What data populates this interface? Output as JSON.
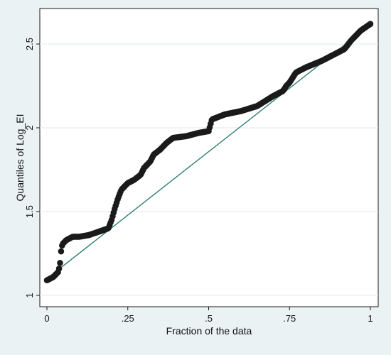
{
  "chart_data": {
    "type": "scatter",
    "title": "",
    "xlabel": "Fraction of the data",
    "ylabel": "Quantiles of Log_EI",
    "xlim": [
      0,
      1
    ],
    "ylim": [
      1,
      2.625
    ],
    "x_ticks": [
      0,
      0.25,
      0.5,
      0.75,
      1
    ],
    "x_tick_labels": [
      "0",
      ".25",
      ".5",
      ".75",
      "1"
    ],
    "y_ticks": [
      1,
      1.5,
      2,
      2.5
    ],
    "y_tick_labels": [
      "1",
      "1.5",
      "2",
      "2.5"
    ],
    "grid": true,
    "legend": false,
    "series": [
      {
        "label": "",
        "kind": "points",
        "color": "#1a1a1a",
        "x": [
          0.0,
          0.02,
          0.035,
          0.04,
          0.045,
          0.05,
          0.06,
          0.08,
          0.1,
          0.13,
          0.16,
          0.19,
          0.2,
          0.21,
          0.22,
          0.23,
          0.25,
          0.27,
          0.29,
          0.3,
          0.32,
          0.33,
          0.35,
          0.37,
          0.39,
          0.43,
          0.47,
          0.5,
          0.51,
          0.55,
          0.6,
          0.65,
          0.7,
          0.73,
          0.74,
          0.75,
          0.77,
          0.8,
          0.85,
          0.88,
          0.9,
          0.92,
          0.94,
          0.97,
          1.0
        ],
        "y": [
          1.09,
          1.11,
          1.14,
          1.18,
          1.29,
          1.31,
          1.33,
          1.35,
          1.35,
          1.36,
          1.38,
          1.4,
          1.45,
          1.52,
          1.58,
          1.63,
          1.67,
          1.69,
          1.72,
          1.76,
          1.8,
          1.84,
          1.87,
          1.91,
          1.94,
          1.95,
          1.97,
          1.98,
          2.05,
          2.08,
          2.1,
          2.13,
          2.19,
          2.22,
          2.25,
          2.27,
          2.33,
          2.36,
          2.4,
          2.43,
          2.45,
          2.47,
          2.52,
          2.58,
          2.62
        ]
      },
      {
        "label": "",
        "kind": "line",
        "color": "#2e7d73",
        "x": [
          0.0,
          1.0
        ],
        "y": [
          1.1,
          2.615
        ]
      }
    ]
  }
}
